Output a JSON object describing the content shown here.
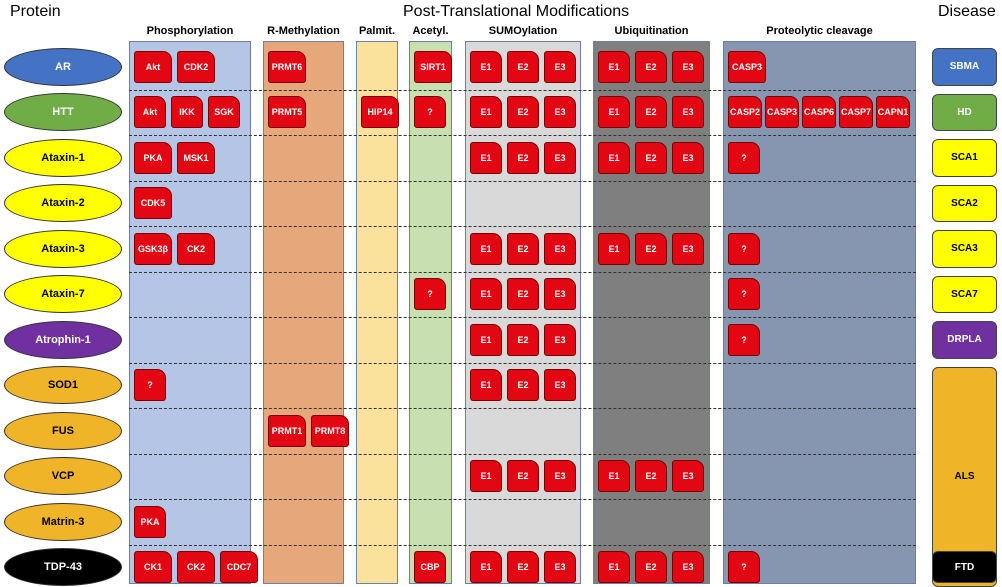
{
  "headers": {
    "protein": "Protein",
    "ptm": "Post-Translational Modifications",
    "disease": "Disease"
  },
  "columns": [
    {
      "key": "phos",
      "label": "Phosphorylation",
      "color": "#b4c5e6"
    },
    {
      "key": "rmeth",
      "label": "R-Methylation",
      "color": "#e6a87b"
    },
    {
      "key": "palm",
      "label": "Palmit.",
      "color": "#fbe29c"
    },
    {
      "key": "acet",
      "label": "Acetyl.",
      "color": "#c8dfb1"
    },
    {
      "key": "sumo",
      "label": "SUMOylation",
      "color": "#d9d9d9"
    },
    {
      "key": "ubiq",
      "label": "Ubiquitination",
      "color": "#7f7f7f"
    },
    {
      "key": "prot",
      "label": "Proteolytic cleavage",
      "color": "#8696b0"
    }
  ],
  "proteins": [
    {
      "name": "AR",
      "color": "#4472c4",
      "text_color": "#ffffff"
    },
    {
      "name": "HTT",
      "color": "#70ad47",
      "text_color": "#ffffff"
    },
    {
      "name": "Ataxin-1",
      "color": "#ffff00",
      "text_color": "#000000"
    },
    {
      "name": "Ataxin-2",
      "color": "#ffff00",
      "text_color": "#000000"
    },
    {
      "name": "Ataxin-3",
      "color": "#ffff00",
      "text_color": "#000000"
    },
    {
      "name": "Ataxin-7",
      "color": "#ffff00",
      "text_color": "#000000"
    },
    {
      "name": "Atrophin-1",
      "color": "#7030a0",
      "text_color": "#ffffff"
    },
    {
      "name": "SOD1",
      "color": "#f0b429",
      "text_color": "#000000"
    },
    {
      "name": "FUS",
      "color": "#f0b429",
      "text_color": "#000000"
    },
    {
      "name": "VCP",
      "color": "#f0b429",
      "text_color": "#000000"
    },
    {
      "name": "Matrin-3",
      "color": "#f0b429",
      "text_color": "#000000"
    },
    {
      "name": "TDP-43",
      "color": "#000000",
      "text_color": "#ffffff"
    }
  ],
  "diseases": [
    {
      "name": "SBMA",
      "rows": [
        0
      ],
      "color": "#4472c4",
      "text_color": "#ffffff"
    },
    {
      "name": "HD",
      "rows": [
        1
      ],
      "color": "#70ad47",
      "text_color": "#ffffff"
    },
    {
      "name": "SCA1",
      "rows": [
        2
      ],
      "color": "#ffff00",
      "text_color": "#000000"
    },
    {
      "name": "SCA2",
      "rows": [
        3
      ],
      "color": "#ffff00",
      "text_color": "#000000"
    },
    {
      "name": "SCA3",
      "rows": [
        4
      ],
      "color": "#ffff00",
      "text_color": "#000000"
    },
    {
      "name": "SCA7",
      "rows": [
        5
      ],
      "color": "#ffff00",
      "text_color": "#000000"
    },
    {
      "name": "DRPLA",
      "rows": [
        6
      ],
      "color": "#7030a0",
      "text_color": "#ffffff"
    },
    {
      "name": "ALS",
      "rows": [
        7,
        11
      ],
      "color": "#f0b429",
      "text_color": "#000000"
    },
    {
      "name": "FTD",
      "rows": [
        11
      ],
      "color": "#000000",
      "text_color": "#ffffff"
    }
  ],
  "enzymes": [
    {
      "row": 0,
      "col": "phos",
      "labels": [
        "Akt",
        "CDK2"
      ]
    },
    {
      "row": 0,
      "col": "rmeth",
      "labels": [
        "PRMT6"
      ]
    },
    {
      "row": 0,
      "col": "acet",
      "labels": [
        "SIRT1"
      ]
    },
    {
      "row": 0,
      "col": "sumo",
      "labels": [
        "E1",
        "E2",
        "E3"
      ]
    },
    {
      "row": 0,
      "col": "ubiq",
      "labels": [
        "E1",
        "E2",
        "E3"
      ]
    },
    {
      "row": 0,
      "col": "prot",
      "labels": [
        "CASP3"
      ]
    },
    {
      "row": 1,
      "col": "phos",
      "labels": [
        "Akt",
        "IKK",
        "SGK"
      ]
    },
    {
      "row": 1,
      "col": "rmeth",
      "labels": [
        "PRMT5"
      ]
    },
    {
      "row": 1,
      "col": "palm",
      "labels": [
        "HIP14"
      ]
    },
    {
      "row": 1,
      "col": "acet",
      "labels": [
        "?"
      ]
    },
    {
      "row": 1,
      "col": "sumo",
      "labels": [
        "E1",
        "E2",
        "E3"
      ]
    },
    {
      "row": 1,
      "col": "ubiq",
      "labels": [
        "E1",
        "E2",
        "E3"
      ]
    },
    {
      "row": 1,
      "col": "prot",
      "labels": [
        "CASP2",
        "CASP3",
        "CASP6",
        "CASP7",
        "CAPN1"
      ]
    },
    {
      "row": 2,
      "col": "phos",
      "labels": [
        "PKA",
        "MSK1"
      ]
    },
    {
      "row": 2,
      "col": "sumo",
      "labels": [
        "E1",
        "E2",
        "E3"
      ]
    },
    {
      "row": 2,
      "col": "ubiq",
      "labels": [
        "E1",
        "E2",
        "E3"
      ]
    },
    {
      "row": 2,
      "col": "prot",
      "labels": [
        "?"
      ]
    },
    {
      "row": 3,
      "col": "phos",
      "labels": [
        "CDK5"
      ]
    },
    {
      "row": 4,
      "col": "phos",
      "labels": [
        "GSK3β",
        "CK2"
      ]
    },
    {
      "row": 4,
      "col": "sumo",
      "labels": [
        "E1",
        "E2",
        "E3"
      ]
    },
    {
      "row": 4,
      "col": "ubiq",
      "labels": [
        "E1",
        "E2",
        "E3"
      ]
    },
    {
      "row": 4,
      "col": "prot",
      "labels": [
        "?"
      ]
    },
    {
      "row": 5,
      "col": "acet",
      "labels": [
        "?"
      ]
    },
    {
      "row": 5,
      "col": "sumo",
      "labels": [
        "E1",
        "E2",
        "E3"
      ]
    },
    {
      "row": 5,
      "col": "prot",
      "labels": [
        "?"
      ]
    },
    {
      "row": 6,
      "col": "sumo",
      "labels": [
        "E1",
        "E2",
        "E3"
      ]
    },
    {
      "row": 6,
      "col": "prot",
      "labels": [
        "?"
      ]
    },
    {
      "row": 7,
      "col": "phos",
      "labels": [
        "?"
      ]
    },
    {
      "row": 7,
      "col": "sumo",
      "labels": [
        "E1",
        "E2",
        "E3"
      ]
    },
    {
      "row": 8,
      "col": "rmeth",
      "labels": [
        "PRMT1",
        "PRMT8"
      ]
    },
    {
      "row": 9,
      "col": "sumo",
      "labels": [
        "E1",
        "E2",
        "E3"
      ]
    },
    {
      "row": 9,
      "col": "ubiq",
      "labels": [
        "E1",
        "E2",
        "E3"
      ]
    },
    {
      "row": 10,
      "col": "phos",
      "labels": [
        "PKA"
      ]
    },
    {
      "row": 11,
      "col": "phos",
      "labels": [
        "CK1",
        "CK2",
        "CDC7"
      ]
    },
    {
      "row": 11,
      "col": "acet",
      "labels": [
        "CBP"
      ]
    },
    {
      "row": 11,
      "col": "sumo",
      "labels": [
        "E1",
        "E2",
        "E3"
      ]
    },
    {
      "row": 11,
      "col": "ubiq",
      "labels": [
        "E1",
        "E2",
        "E3"
      ]
    },
    {
      "row": 11,
      "col": "prot",
      "labels": [
        "?"
      ]
    }
  ]
}
